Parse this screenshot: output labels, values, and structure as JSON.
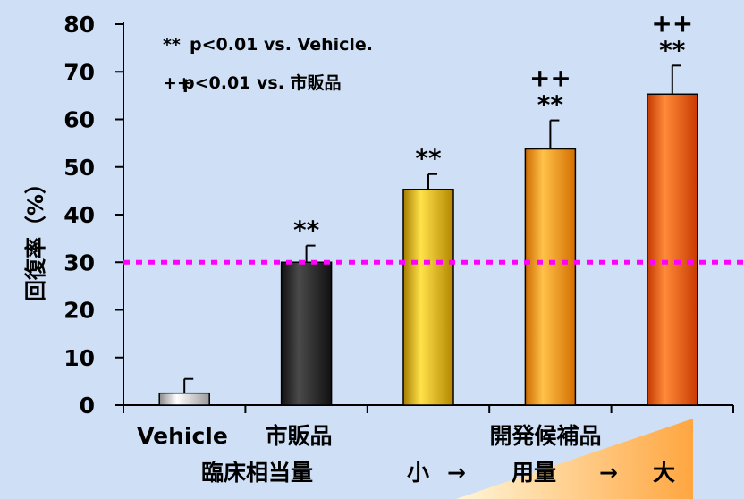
{
  "chart_data": {
    "type": "bar",
    "categories": [
      "Vehicle",
      "市販品",
      "",
      "",
      ""
    ],
    "values": [
      2.5,
      30,
      45.3,
      53.8,
      65.3
    ],
    "errors": [
      3,
      3.5,
      3.2,
      6,
      6
    ],
    "colors": [
      "#c8c8c8",
      "#262626",
      "#e0b400",
      "#ff9a00",
      "#ff5a00"
    ],
    "ylim": [
      0,
      80
    ],
    "yticks": [
      0,
      10,
      20,
      30,
      40,
      50,
      60,
      70,
      80
    ],
    "ylabel": "回復率（%）",
    "reference_line": {
      "value": 30,
      "color": "#ff00ff"
    },
    "group_label": "開発候補品",
    "dose_axis": {
      "prefix": "臨床相当量",
      "small": "小",
      "arrow1": "→",
      "middle": "用量",
      "arrow2": "→",
      "large": "大"
    },
    "legend": [
      {
        "symbol": "**",
        "text": "p<0.01 vs. Vehicle."
      },
      {
        "symbol": "++",
        "text": "p<0.01 vs. 市販品"
      }
    ],
    "significance": [
      [],
      [
        "**"
      ],
      [
        "**"
      ],
      [
        "++",
        "**"
      ],
      [
        "++",
        "**"
      ]
    ]
  }
}
